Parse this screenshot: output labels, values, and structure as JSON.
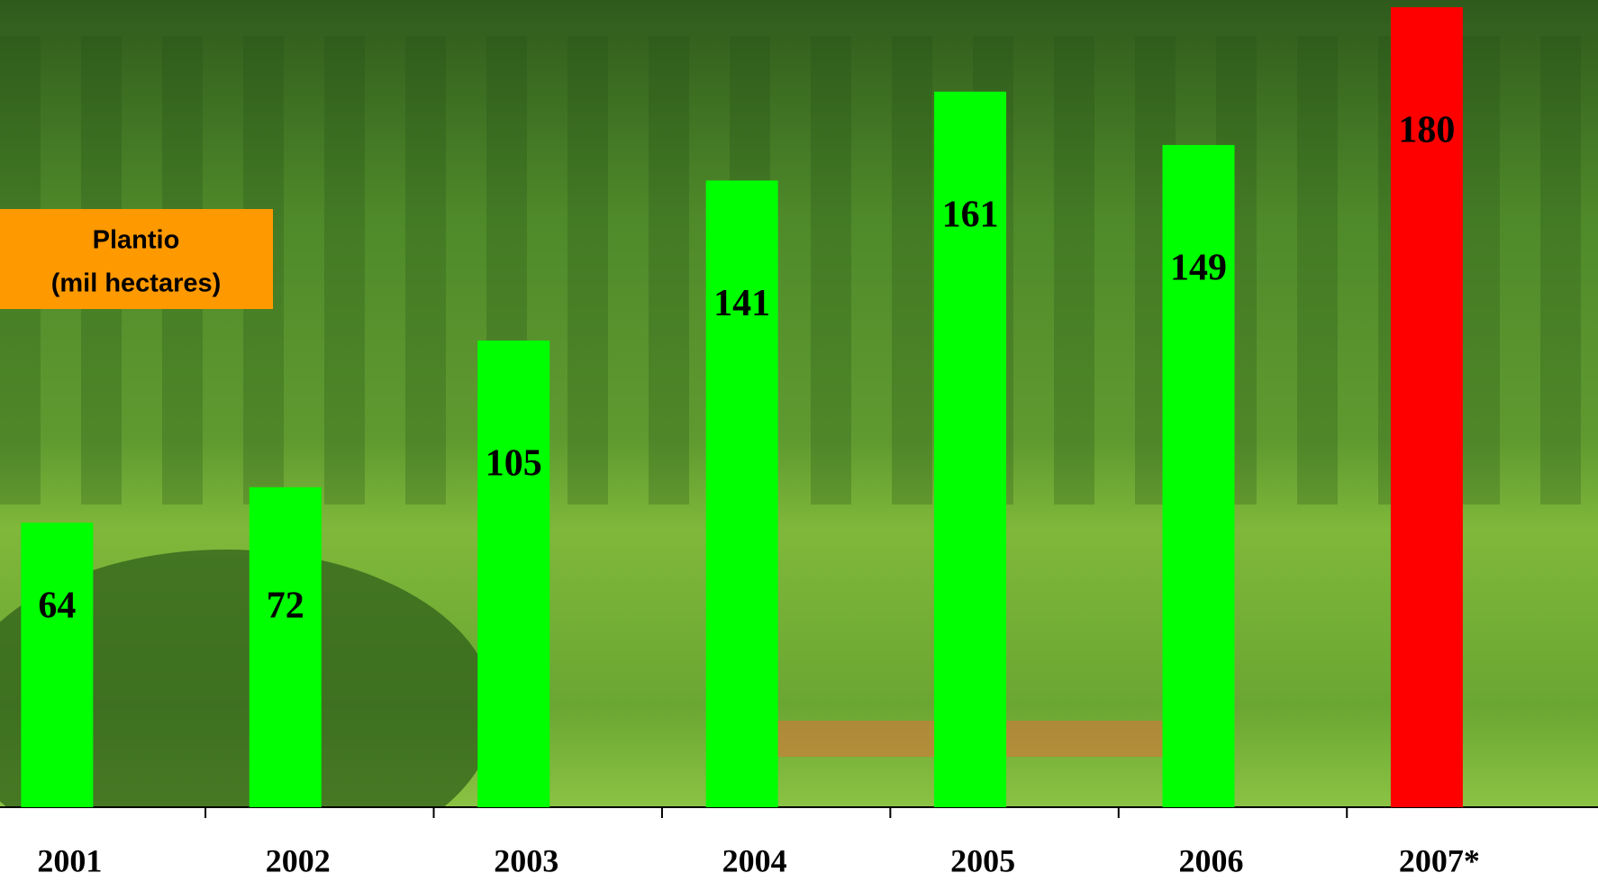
{
  "chart_data": {
    "type": "bar",
    "title_lines": [
      "Plantio",
      "(mil hectares)"
    ],
    "categories": [
      "2001",
      "2002",
      "2003",
      "2004",
      "2005",
      "2006",
      "2007*"
    ],
    "values": [
      64,
      72,
      105,
      141,
      161,
      149,
      180
    ],
    "colors": [
      "#00ff00",
      "#00ff00",
      "#00ff00",
      "#00ff00",
      "#00ff00",
      "#00ff00",
      "#ff0000"
    ]
  }
}
